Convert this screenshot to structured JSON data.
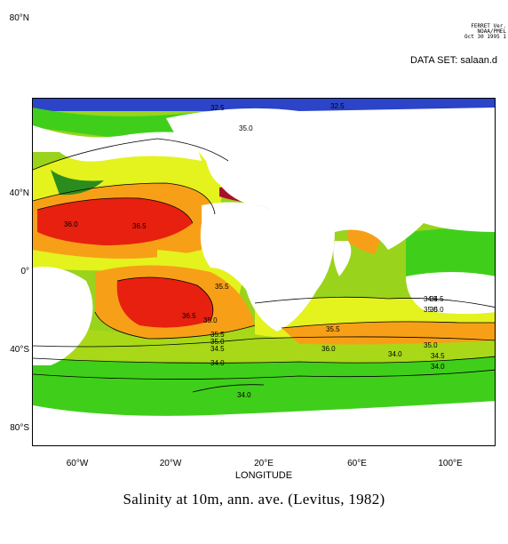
{
  "header": {
    "line1": "FERRET Ver.",
    "line2": "NOAA/PMEL",
    "line3": "Oct 30 1995 1",
    "dataset": "DATA SET: salaan.d"
  },
  "map": {
    "y_axis_labels": [
      "80°N",
      "40°N",
      "0°",
      "40°S",
      "80°S"
    ],
    "x_axis_labels": [
      "60°W",
      "20°W",
      "20°E",
      "60°E",
      "100°E"
    ],
    "x_axis_title": "LONGITUDE",
    "contour_labels": [
      "32.5",
      "32.5",
      "35.0",
      "36.0",
      "36.5",
      "35.5",
      "36.5",
      "35.0",
      "35.5",
      "35.0",
      "34.5",
      "35.5",
      "36.0",
      "35.0",
      "34.5",
      "35.0",
      "34.0",
      "34.5",
      "34.0",
      "34.0",
      "35.0",
      "34.5",
      "34.0"
    ],
    "colors": {
      "salinity_low": "#2b44c8",
      "salinity_mid_low": "#3fcf1a",
      "salinity_mid": "#e4f21e",
      "salinity_mid_high": "#f7a017",
      "salinity_high": "#e8200f",
      "land": "#ffffff"
    }
  },
  "figure": {
    "title": "Salinity at 10m, ann. ave. (Levitus, 1982)"
  }
}
